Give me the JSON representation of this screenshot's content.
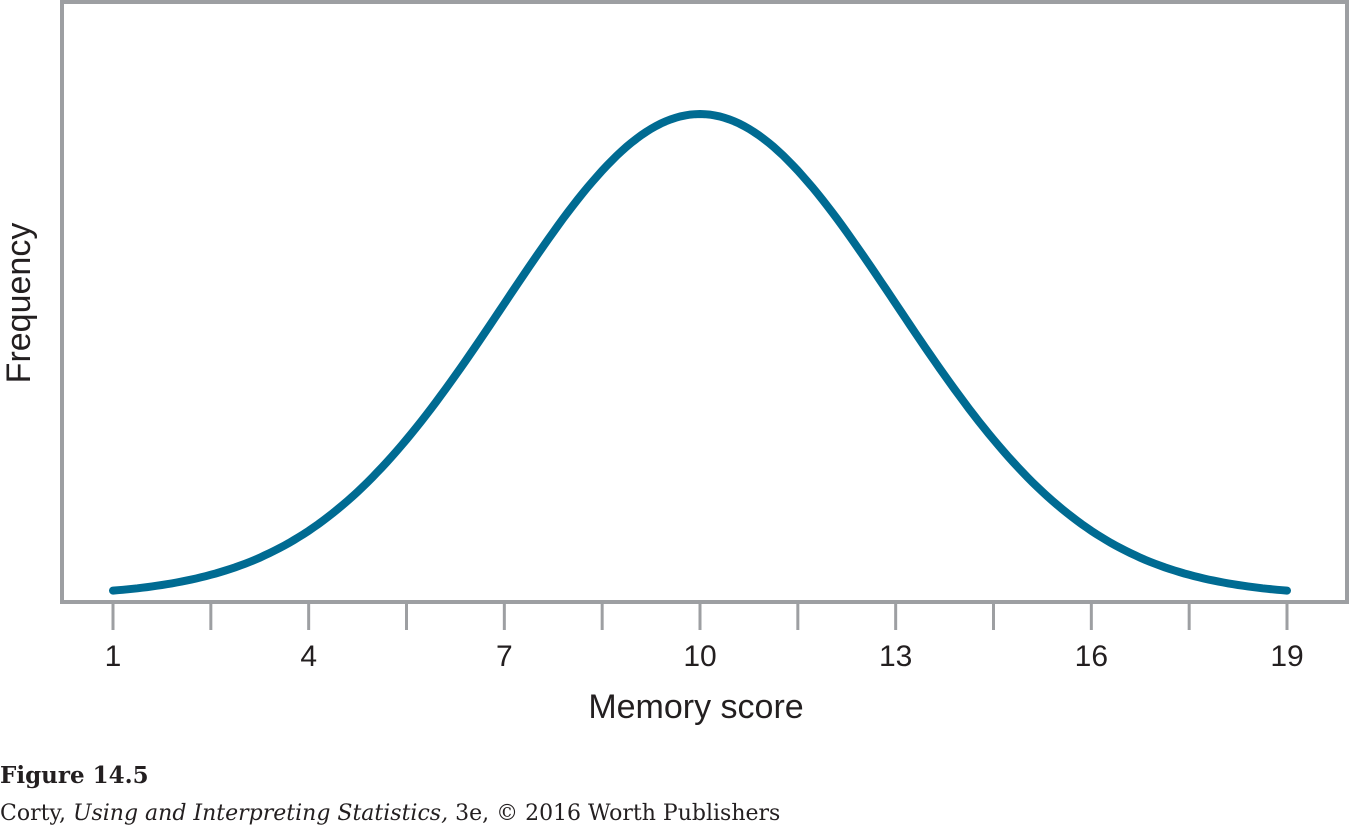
{
  "chart_data": {
    "type": "line",
    "title": "",
    "xlabel": "Memory score",
    "ylabel": "Frequency",
    "xlim": [
      1,
      19
    ],
    "ylim": [
      0,
      1
    ],
    "x_ticks_labeled": [
      1,
      4,
      7,
      10,
      13,
      16,
      19
    ],
    "x_ticks_minor": [
      2.5,
      5.5,
      8.5,
      11.5,
      14.5,
      17.5
    ],
    "y_ticks": [],
    "grid": false,
    "series": [
      {
        "name": "",
        "distribution": "normal",
        "mean": 10,
        "sd": 3,
        "x": [
          1,
          2,
          3,
          4,
          5,
          6,
          7,
          8,
          9,
          10,
          11,
          12,
          13,
          14,
          15,
          16,
          17,
          18,
          19
        ],
        "y": [
          0.011,
          0.029,
          0.066,
          0.135,
          0.249,
          0.411,
          0.607,
          0.801,
          0.946,
          1.0,
          0.946,
          0.801,
          0.607,
          0.411,
          0.249,
          0.135,
          0.066,
          0.029,
          0.011
        ],
        "color": "#006b92"
      }
    ]
  },
  "colors": {
    "curve": "#006b92",
    "frame": "#9d9fa2",
    "text": "#231f20"
  },
  "caption": {
    "figure_label": "Figure 14.5",
    "author": "Corty, ",
    "book_title": "Using and Interpreting Statistics,",
    "edition_publisher": " 3e, © 2016 Worth Publishers"
  }
}
